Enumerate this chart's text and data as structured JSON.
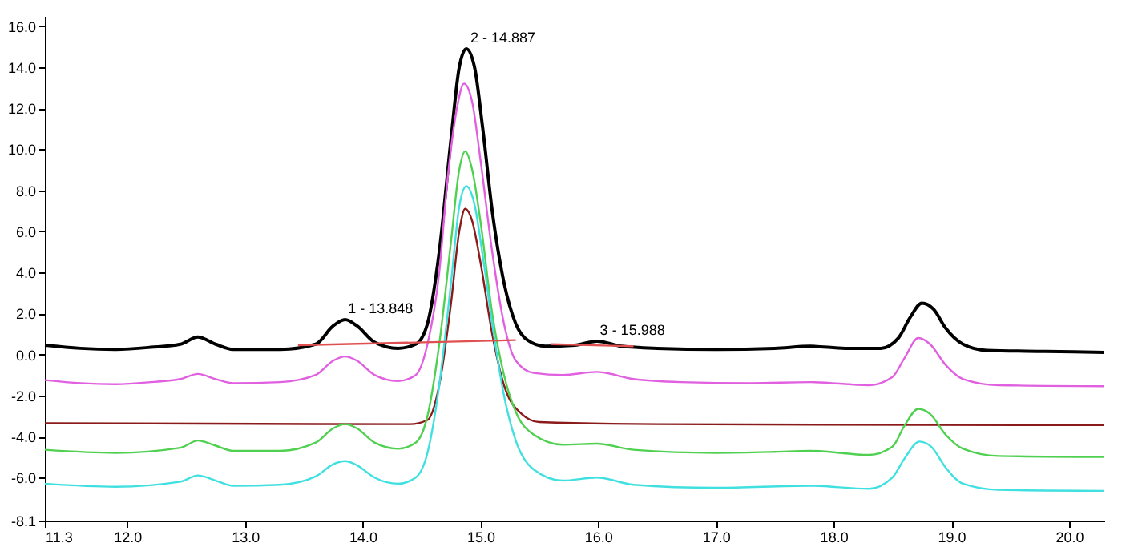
{
  "chart_data": {
    "type": "line",
    "xlim": [
      11.3,
      20.3
    ],
    "ylim": [
      -8.1,
      16.5
    ],
    "xticks": [
      {
        "value": 11.3,
        "label": "11.3"
      },
      {
        "value": 12,
        "label": "12.0"
      },
      {
        "value": 13,
        "label": "13.0"
      },
      {
        "value": 14,
        "label": "14.0"
      },
      {
        "value": 15,
        "label": "15.0"
      },
      {
        "value": 16,
        "label": "16.0"
      },
      {
        "value": 17,
        "label": "17.0"
      },
      {
        "value": 18,
        "label": "18.0"
      },
      {
        "value": 19,
        "label": "19.0"
      },
      {
        "value": 20,
        "label": "20.0"
      }
    ],
    "yticks": [
      {
        "value": -8.1,
        "label": "-8.1"
      },
      {
        "value": -6,
        "label": "-6.0"
      },
      {
        "value": -4,
        "label": "-4.0"
      },
      {
        "value": -2,
        "label": "-2.0"
      },
      {
        "value": 0,
        "label": "0.0"
      },
      {
        "value": 2,
        "label": "2.0"
      },
      {
        "value": 4,
        "label": "4.0"
      },
      {
        "value": 6,
        "label": "6.0"
      },
      {
        "value": 8,
        "label": "8.0"
      },
      {
        "value": 10,
        "label": "10.0"
      },
      {
        "value": 12,
        "label": "12.0"
      },
      {
        "value": 14,
        "label": "14.0"
      },
      {
        "value": 16,
        "label": "16.0"
      }
    ],
    "grid": false,
    "marker": "none",
    "line_style": "solid",
    "series": [
      {
        "color": "#000000",
        "x": [
          11.3,
          11.6,
          11.9,
          12.2,
          12.45,
          12.6,
          12.75,
          12.9,
          13.3,
          13.6,
          13.75,
          13.85,
          13.95,
          14.1,
          14.3,
          14.45,
          14.55,
          14.65,
          14.75,
          14.82,
          14.88,
          14.95,
          15.02,
          15.1,
          15.2,
          15.3,
          15.4,
          15.55,
          15.8,
          15.99,
          16.2,
          16.5,
          17.0,
          17.5,
          17.8,
          18.1,
          18.4,
          18.55,
          18.65,
          18.75,
          18.85,
          18.95,
          19.1,
          19.3,
          19.8,
          20.3
        ],
        "values": [
          0.45,
          0.3,
          0.25,
          0.35,
          0.5,
          0.85,
          0.5,
          0.25,
          0.25,
          0.5,
          1.4,
          1.7,
          1.4,
          0.6,
          0.3,
          0.5,
          1.5,
          5,
          10.5,
          14,
          14.9,
          14,
          11,
          7,
          3.5,
          1.5,
          0.7,
          0.4,
          0.45,
          0.65,
          0.4,
          0.3,
          0.25,
          0.3,
          0.4,
          0.3,
          0.3,
          0.8,
          1.8,
          2.5,
          2.2,
          1.3,
          0.5,
          0.2,
          0.15,
          0.1
        ]
      },
      {
        "color": "#e060e0",
        "x": [
          11.3,
          11.6,
          11.9,
          12.2,
          12.45,
          12.6,
          12.75,
          12.9,
          13.3,
          13.6,
          13.75,
          13.85,
          13.95,
          14.1,
          14.3,
          14.45,
          14.55,
          14.65,
          14.72,
          14.8,
          14.86,
          14.93,
          15.0,
          15.1,
          15.2,
          15.3,
          15.45,
          15.7,
          15.99,
          16.3,
          16.7,
          17.3,
          17.8,
          18.3,
          18.5,
          18.6,
          18.72,
          18.82,
          18.95,
          19.1,
          19.4,
          20.3
        ],
        "values": [
          -1.25,
          -1.4,
          -1.45,
          -1.35,
          -1.2,
          -0.95,
          -1.2,
          -1.4,
          -1.35,
          -1.0,
          -0.3,
          -0.1,
          -0.3,
          -1.0,
          -1.3,
          -1.0,
          0.5,
          4,
          8.5,
          12,
          13.2,
          12.3,
          9.5,
          5,
          1.5,
          -0.3,
          -0.9,
          -1.0,
          -0.85,
          -1.2,
          -1.35,
          -1.4,
          -1.35,
          -1.5,
          -1.1,
          -0.2,
          0.8,
          0.5,
          -0.5,
          -1.2,
          -1.5,
          -1.55
        ]
      },
      {
        "color": "#8b1a1a",
        "x": [
          11.3,
          14.4,
          14.55,
          14.65,
          14.75,
          14.82,
          14.87,
          14.93,
          15.0,
          15.1,
          15.2,
          15.35,
          15.5,
          16.5,
          20.3
        ],
        "values": [
          -3.35,
          -3.4,
          -3.2,
          -1.5,
          2.5,
          6,
          7.1,
          6.5,
          4.5,
          1.0,
          -1.5,
          -2.9,
          -3.3,
          -3.4,
          -3.45
        ]
      },
      {
        "color": "#50d050",
        "x": [
          11.3,
          11.9,
          12.45,
          12.6,
          12.75,
          12.9,
          13.3,
          13.6,
          13.75,
          13.85,
          13.95,
          14.1,
          14.3,
          14.45,
          14.55,
          14.65,
          14.75,
          14.82,
          14.87,
          14.93,
          15.0,
          15.1,
          15.2,
          15.3,
          15.45,
          15.7,
          15.99,
          16.3,
          17.0,
          17.5,
          17.8,
          18.3,
          18.5,
          18.6,
          18.72,
          18.82,
          18.95,
          19.1,
          19.4,
          20.3
        ],
        "values": [
          -4.65,
          -4.8,
          -4.55,
          -4.2,
          -4.45,
          -4.7,
          -4.7,
          -4.3,
          -3.6,
          -3.4,
          -3.6,
          -4.3,
          -4.6,
          -4.3,
          -3.0,
          0.5,
          5.5,
          9,
          9.9,
          9.0,
          6.5,
          2.0,
          -1.0,
          -2.8,
          -3.9,
          -4.4,
          -4.35,
          -4.65,
          -4.8,
          -4.75,
          -4.7,
          -4.9,
          -4.5,
          -3.5,
          -2.65,
          -2.9,
          -3.9,
          -4.6,
          -4.95,
          -5.0
        ]
      },
      {
        "color": "#40e0e0",
        "x": [
          11.3,
          11.9,
          12.45,
          12.6,
          12.75,
          12.9,
          13.3,
          13.6,
          13.75,
          13.85,
          13.95,
          14.1,
          14.3,
          14.45,
          14.55,
          14.65,
          14.75,
          14.82,
          14.88,
          14.95,
          15.02,
          15.1,
          15.2,
          15.3,
          15.45,
          15.7,
          15.99,
          16.3,
          17.0,
          17.8,
          18.3,
          18.5,
          18.6,
          18.73,
          18.83,
          18.95,
          19.1,
          19.4,
          20.3
        ],
        "values": [
          -6.3,
          -6.45,
          -6.2,
          -5.9,
          -6.15,
          -6.4,
          -6.35,
          -5.95,
          -5.35,
          -5.2,
          -5.4,
          -6.0,
          -6.3,
          -6.0,
          -4.8,
          -1.5,
          3.5,
          7.2,
          8.2,
          7.3,
          4.8,
          1.5,
          -2.0,
          -4.2,
          -5.6,
          -6.15,
          -6.0,
          -6.35,
          -6.5,
          -6.4,
          -6.55,
          -6.0,
          -5.1,
          -4.25,
          -4.5,
          -5.5,
          -6.3,
          -6.6,
          -6.65
        ]
      },
      {
        "color": "#e05050",
        "x": [
          13.45,
          15.3
        ],
        "values": [
          0.45,
          0.7
        ]
      },
      {
        "color": "#e05050",
        "x": [
          15.6,
          16.3
        ],
        "values": [
          0.5,
          0.4
        ]
      }
    ],
    "annotations": [
      {
        "text": "1 - 13.848",
        "x": 13.848,
        "y": 1.7
      },
      {
        "text": "2 - 14.887",
        "x": 14.887,
        "y": 14.9
      },
      {
        "text": "3 - 15.988",
        "x": 15.988,
        "y": 0.63
      }
    ]
  }
}
